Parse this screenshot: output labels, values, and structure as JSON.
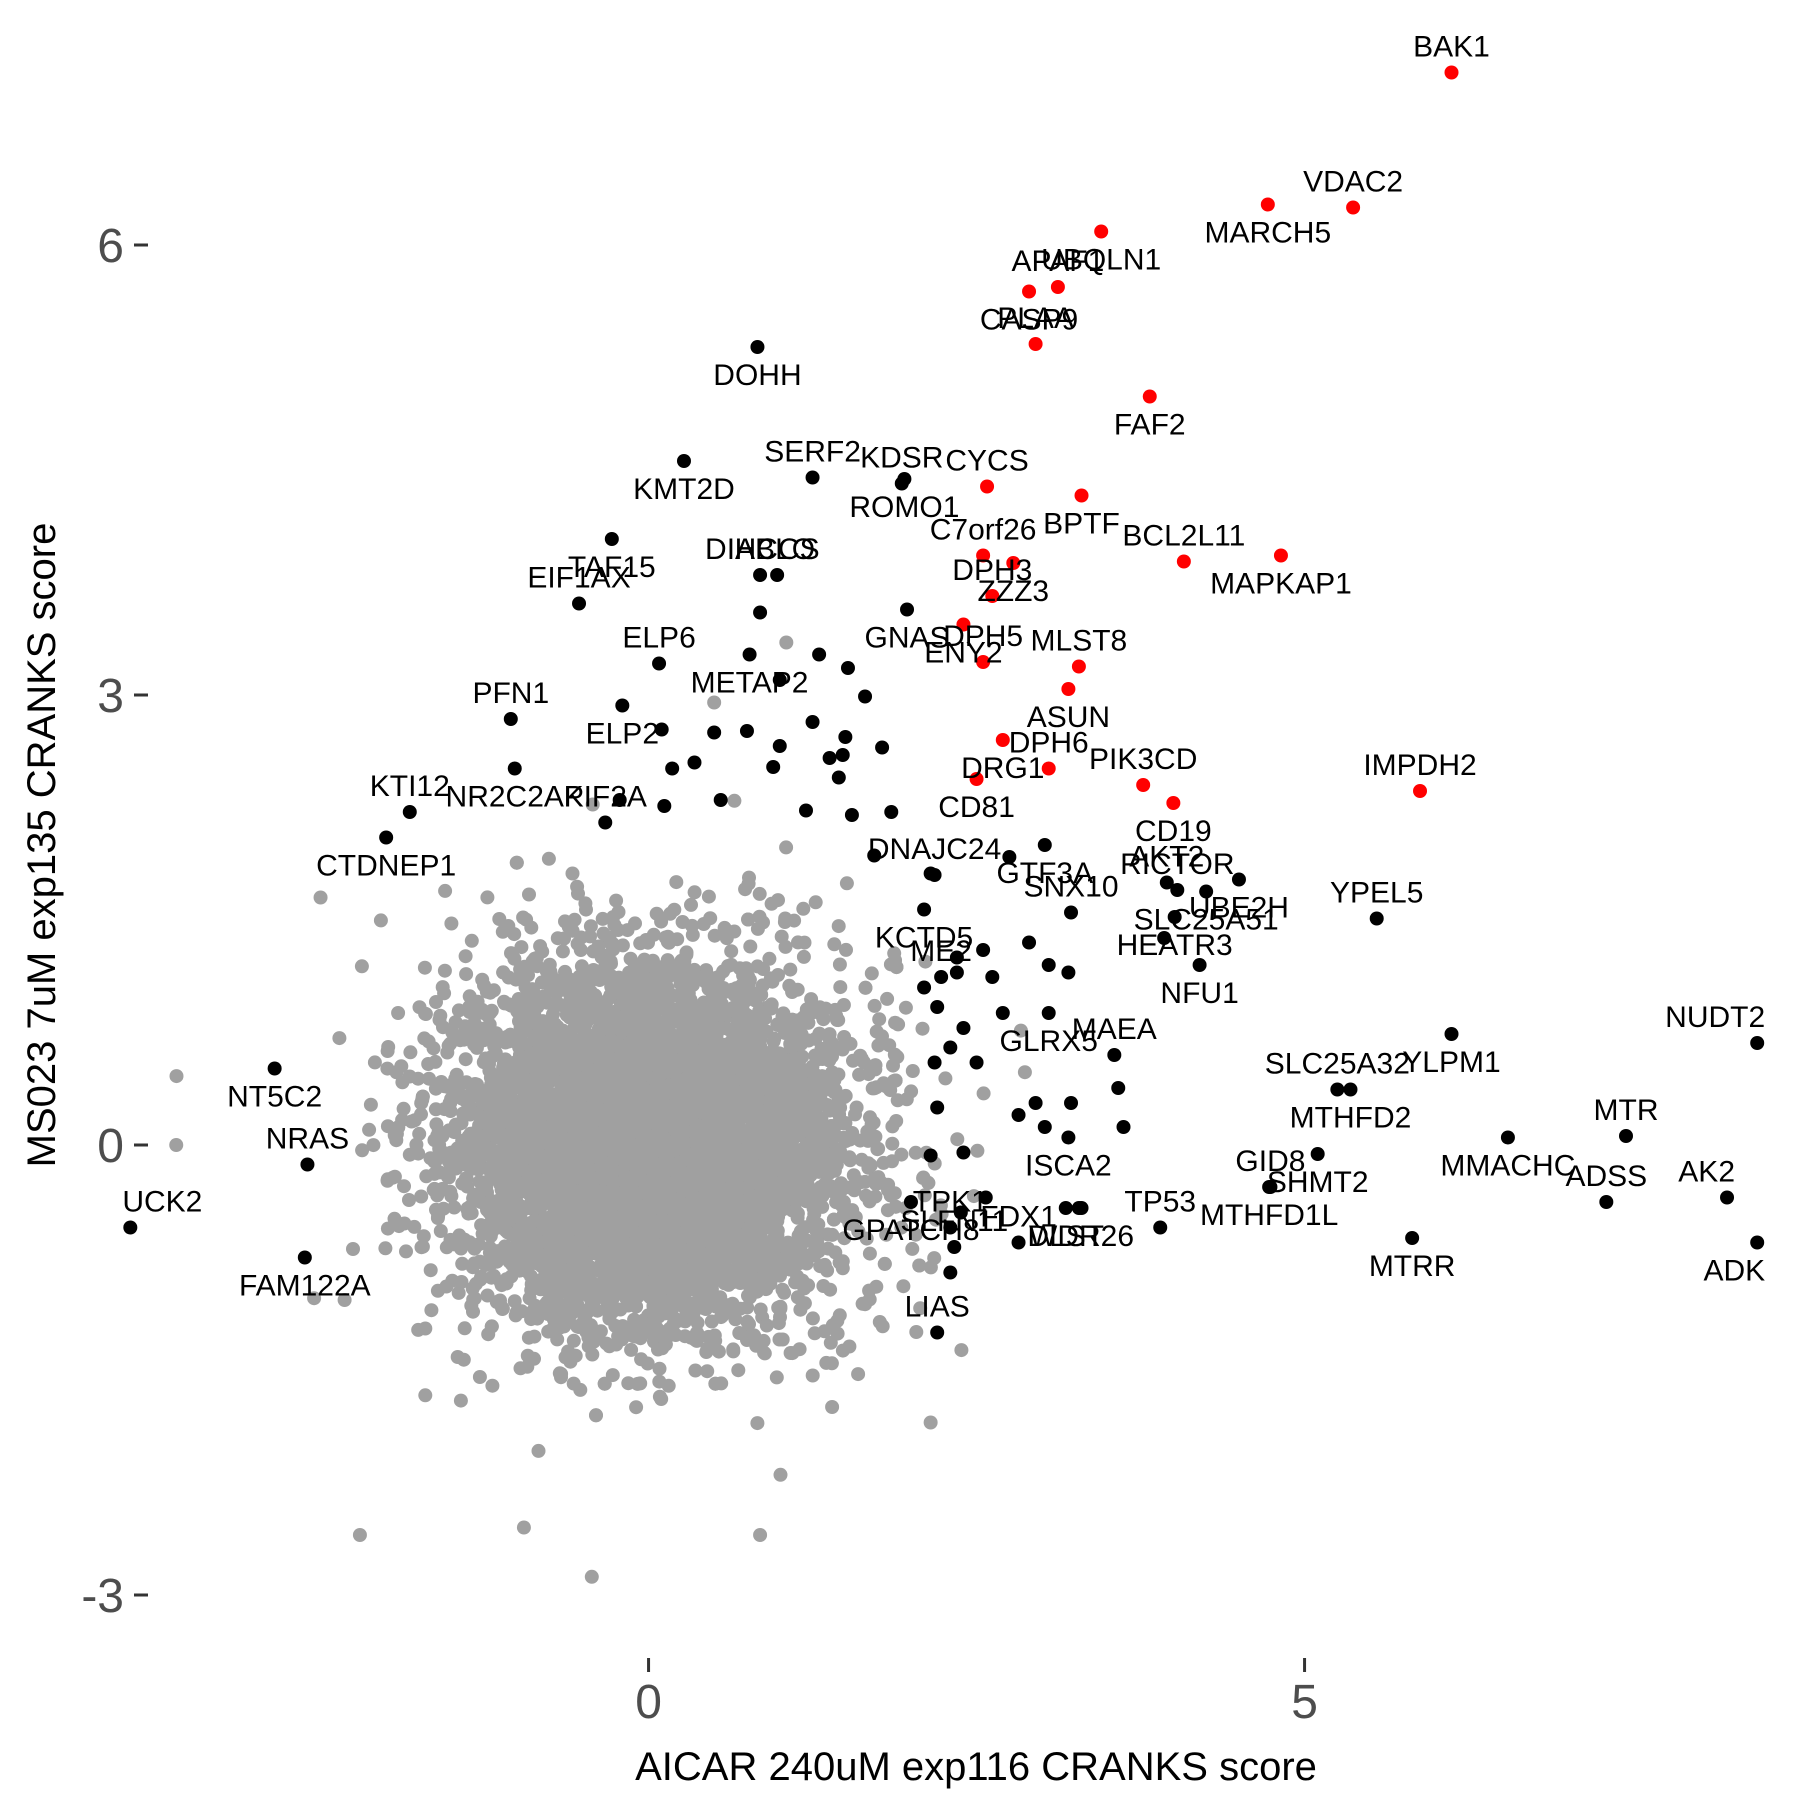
{
  "chart_data": {
    "type": "scatter",
    "title": "",
    "xlabel": "AICAR 240uM exp116 CRANKS score",
    "ylabel": "MS023 7uM exp135 CRANKS score",
    "xlim": [
      -3.8,
      8.7
    ],
    "ylim": [
      -3.4,
      7.5
    ],
    "xticks": [
      0,
      5
    ],
    "yticks": [
      -3,
      0,
      3,
      6
    ],
    "xtick_labels": [
      "0",
      "5"
    ],
    "ytick_labels": [
      "-3",
      "0",
      "3",
      "6"
    ],
    "grid": false,
    "legend": "none",
    "colors": {
      "background": "#cccccc",
      "highlight": "#000000",
      "top": "#ff0000",
      "tick_text": "#4d4d4d"
    },
    "background_points": {
      "description": "thousands of unlabeled grey points forming a dense cloud centered near (0, 0)",
      "approx_count": 6000,
      "center": [
        0,
        0
      ],
      "spread": [
        0.75,
        0.6
      ],
      "outliers": [
        [
          -3.6,
          0.0
        ],
        [
          -2.5,
          1.65
        ],
        [
          -2.2,
          -2.6
        ],
        [
          0.85,
          -2.6
        ],
        [
          -0.95,
          -2.55
        ],
        [
          2.15,
          -1.85
        ],
        [
          1.05,
          3.35
        ],
        [
          0.5,
          2.95
        ]
      ]
    },
    "labeled_points": [
      {
        "label": "BAK1",
        "x": 6.12,
        "y": 7.15,
        "group": "red"
      },
      {
        "label": "MARCH5",
        "x": 4.72,
        "y": 6.27,
        "group": "red"
      },
      {
        "label": "VDAC2",
        "x": 5.37,
        "y": 6.25,
        "group": "red"
      },
      {
        "label": "UBQLN1",
        "x": 3.45,
        "y": 6.09,
        "group": "red"
      },
      {
        "label": "APAF1",
        "x": 3.12,
        "y": 5.72,
        "group": "red"
      },
      {
        "label": "CASP9",
        "x": 2.9,
        "y": 5.69,
        "group": "red"
      },
      {
        "label": "PLAA",
        "x": 2.95,
        "y": 5.34,
        "group": "red"
      },
      {
        "label": "FAF2",
        "x": 3.82,
        "y": 4.99,
        "group": "red"
      },
      {
        "label": "CYCS",
        "x": 2.58,
        "y": 4.39,
        "group": "red"
      },
      {
        "label": "BPTF",
        "x": 3.3,
        "y": 4.33,
        "group": "red"
      },
      {
        "label": "C7orf26",
        "x": 2.55,
        "y": 3.93,
        "group": "red"
      },
      {
        "label": "ZZZ3",
        "x": 2.78,
        "y": 3.88,
        "group": "red"
      },
      {
        "label": "DPH3",
        "x": 2.62,
        "y": 3.66,
        "group": "red"
      },
      {
        "label": "MAPKAP1",
        "x": 4.82,
        "y": 3.93,
        "group": "red"
      },
      {
        "label": "BCL2L11",
        "x": 4.08,
        "y": 3.89,
        "group": "red"
      },
      {
        "label": "ENY2",
        "x": 2.4,
        "y": 3.47,
        "group": "red"
      },
      {
        "label": "MLST8",
        "x": 3.28,
        "y": 3.19,
        "group": "red"
      },
      {
        "label": "ASUN",
        "x": 3.2,
        "y": 3.04,
        "group": "red"
      },
      {
        "label": "DPH5",
        "x": 2.55,
        "y": 3.22,
        "group": "red"
      },
      {
        "label": "DRG1",
        "x": 2.7,
        "y": 2.7,
        "group": "red"
      },
      {
        "label": "DPH6",
        "x": 3.05,
        "y": 2.51,
        "group": "red"
      },
      {
        "label": "CD81",
        "x": 2.5,
        "y": 2.44,
        "group": "red"
      },
      {
        "label": "PIK3CD",
        "x": 3.77,
        "y": 2.4,
        "group": "red"
      },
      {
        "label": "CD19",
        "x": 4.0,
        "y": 2.28,
        "group": "red"
      },
      {
        "label": "IMPDH2",
        "x": 5.88,
        "y": 2.36,
        "group": "red"
      },
      {
        "label": "DOHH",
        "x": 0.83,
        "y": 5.32,
        "group": "black"
      },
      {
        "label": "SERF2",
        "x": 1.25,
        "y": 4.45,
        "group": "black"
      },
      {
        "label": "ROMO1",
        "x": 1.95,
        "y": 4.44,
        "group": "black"
      },
      {
        "label": "KDSR",
        "x": 1.93,
        "y": 4.41,
        "group": "black"
      },
      {
        "label": "KMT2D",
        "x": 0.27,
        "y": 4.56,
        "group": "black"
      },
      {
        "label": "DIABLO",
        "x": 0.85,
        "y": 3.8,
        "group": "black"
      },
      {
        "label": "GNAS",
        "x": 1.97,
        "y": 3.57,
        "group": "black"
      },
      {
        "label": "HCCS",
        "x": 0.98,
        "y": 3.8,
        "group": "black"
      },
      {
        "label": "TAF15",
        "x": -0.28,
        "y": 4.04,
        "group": "black"
      },
      {
        "label": "EIF1AX",
        "x": -0.53,
        "y": 3.61,
        "group": "black"
      },
      {
        "label": "METAP2",
        "x": 0.77,
        "y": 3.27,
        "group": "black"
      },
      {
        "label": "ELP6",
        "x": 0.08,
        "y": 3.21,
        "group": "black"
      },
      {
        "label": "ELP2",
        "x": -0.2,
        "y": 2.93,
        "group": "black"
      },
      {
        "label": "PFN1",
        "x": -1.05,
        "y": 2.84,
        "group": "black"
      },
      {
        "label": "NR2C2AP",
        "x": -1.02,
        "y": 2.51,
        "group": "black"
      },
      {
        "label": "KTI12",
        "x": -1.82,
        "y": 2.22,
        "group": "black"
      },
      {
        "label": "CTDNEP1",
        "x": -2.0,
        "y": 2.05,
        "group": "black"
      },
      {
        "label": "KIF2A",
        "x": -0.33,
        "y": 2.15,
        "group": "black"
      },
      {
        "label": "GTF3A",
        "x": 3.02,
        "y": 2.0,
        "group": "black"
      },
      {
        "label": "RICTOR",
        "x": 4.03,
        "y": 1.7,
        "group": "black"
      },
      {
        "label": "UBE2H",
        "x": 4.5,
        "y": 1.77,
        "group": "black"
      },
      {
        "label": "DNAJC24",
        "x": 2.18,
        "y": 1.8,
        "group": "black"
      },
      {
        "label": "KCTD5",
        "x": 2.1,
        "y": 1.57,
        "group": "black"
      },
      {
        "label": "AKT2",
        "x": 3.95,
        "y": 1.75,
        "group": "black"
      },
      {
        "label": "SLC25A51",
        "x": 4.25,
        "y": 1.69,
        "group": "black"
      },
      {
        "label": "YPEL5",
        "x": 5.55,
        "y": 1.51,
        "group": "black"
      },
      {
        "label": "HEATR3",
        "x": 4.01,
        "y": 1.52,
        "group": "black"
      },
      {
        "label": "SNX10",
        "x": 3.22,
        "y": 1.55,
        "group": "black"
      },
      {
        "label": "NFU1",
        "x": 4.2,
        "y": 1.2,
        "group": "black"
      },
      {
        "label": "ME2",
        "x": 2.23,
        "y": 1.12,
        "group": "black"
      },
      {
        "label": "GLRX5",
        "x": 3.05,
        "y": 0.88,
        "group": "black"
      },
      {
        "label": "SLC25A32",
        "x": 5.25,
        "y": 0.37,
        "group": "black"
      },
      {
        "label": "YLPM1",
        "x": 6.12,
        "y": 0.74,
        "group": "black"
      },
      {
        "label": "NUDT2",
        "x": 8.45,
        "y": 0.68,
        "group": "black"
      },
      {
        "label": "MTHFD2",
        "x": 5.35,
        "y": 0.37,
        "group": "black"
      },
      {
        "label": "MAEA",
        "x": 3.55,
        "y": 0.6,
        "group": "black"
      },
      {
        "label": "SHMT2",
        "x": 5.1,
        "y": -0.06,
        "group": "black"
      },
      {
        "label": "MTR",
        "x": 7.45,
        "y": 0.06,
        "group": "black"
      },
      {
        "label": "MMACHC",
        "x": 6.55,
        "y": 0.05,
        "group": "black"
      },
      {
        "label": "AK2",
        "x": 8.22,
        "y": -0.35,
        "group": "black"
      },
      {
        "label": "ISCA2",
        "x": 3.2,
        "y": 0.05,
        "group": "black"
      },
      {
        "label": "GID8",
        "x": 4.74,
        "y": -0.28,
        "group": "black"
      },
      {
        "label": "MTHFD1L",
        "x": 4.73,
        "y": -0.28,
        "group": "black"
      },
      {
        "label": "ADSS",
        "x": 7.3,
        "y": -0.38,
        "group": "black"
      },
      {
        "label": "ADK",
        "x": 8.45,
        "y": -0.65,
        "group": "black"
      },
      {
        "label": "TP53",
        "x": 3.9,
        "y": -0.55,
        "group": "black"
      },
      {
        "label": "MTRR",
        "x": 5.82,
        "y": -0.62,
        "group": "black"
      },
      {
        "label": "FDX1",
        "x": 2.82,
        "y": -0.65,
        "group": "black"
      },
      {
        "label": "WDR26",
        "x": 3.3,
        "y": -0.42,
        "group": "black"
      },
      {
        "label": "SLFN11",
        "x": 2.33,
        "y": -0.68,
        "group": "black"
      },
      {
        "label": "DLST",
        "x": 3.18,
        "y": -0.42,
        "group": "black"
      },
      {
        "label": "LIAS",
        "x": 2.2,
        "y": -1.25,
        "group": "black"
      },
      {
        "label": "GPATCH8",
        "x": 2.0,
        "y": -0.38,
        "group": "black"
      },
      {
        "label": "TPK1",
        "x": 2.3,
        "y": -0.55,
        "group": "black"
      },
      {
        "label": "NT5C2",
        "x": -2.85,
        "y": 0.51,
        "group": "black"
      },
      {
        "label": "NRAS",
        "x": -2.6,
        "y": -0.13,
        "group": "black"
      },
      {
        "label": "FAM122A",
        "x": -2.62,
        "y": -0.75,
        "group": "black"
      },
      {
        "label": "UCK2",
        "x": -3.95,
        "y": -0.55,
        "group": "black"
      }
    ],
    "extra_black_points": [
      [
        0.75,
        2.76
      ],
      [
        0.95,
        2.52
      ],
      [
        1.25,
        2.82
      ],
      [
        1.5,
        2.72
      ],
      [
        1.45,
        2.45
      ],
      [
        0.35,
        2.55
      ],
      [
        0.55,
        2.3
      ],
      [
        1.2,
        2.23
      ],
      [
        1.78,
        2.65
      ],
      [
        1.55,
        2.2
      ],
      [
        1.85,
        2.22
      ],
      [
        1.38,
        2.58
      ],
      [
        1.65,
        2.99
      ],
      [
        1.0,
        3.1
      ],
      [
        0.1,
        2.77
      ],
      [
        0.18,
        2.51
      ],
      [
        -0.22,
        2.3
      ],
      [
        0.12,
        2.26
      ],
      [
        1.72,
        1.93
      ],
      [
        2.15,
        1.81
      ],
      [
        2.35,
        1.25
      ],
      [
        2.1,
        1.05
      ],
      [
        2.35,
        1.15
      ],
      [
        2.62,
        1.12
      ],
      [
        2.7,
        0.88
      ],
      [
        2.2,
        0.92
      ],
      [
        2.4,
        0.78
      ],
      [
        2.3,
        0.65
      ],
      [
        2.18,
        0.55
      ],
      [
        2.55,
        1.3
      ],
      [
        3.05,
        1.2
      ],
      [
        3.2,
        1.15
      ],
      [
        2.5,
        0.55
      ],
      [
        2.4,
        -0.05
      ],
      [
        2.2,
        0.25
      ],
      [
        2.15,
        -0.07
      ],
      [
        2.38,
        -0.45
      ],
      [
        2.57,
        -0.35
      ],
      [
        2.3,
        -0.85
      ],
      [
        2.95,
        0.28
      ],
      [
        3.22,
        0.28
      ],
      [
        3.02,
        0.12
      ],
      [
        3.28,
        -0.42
      ],
      [
        2.82,
        0.2
      ],
      [
        3.62,
        0.12
      ],
      [
        3.58,
        0.38
      ],
      [
        3.93,
        1.38
      ],
      [
        2.9,
        1.35
      ],
      [
        2.75,
        1.92
      ],
      [
        1.52,
        3.18
      ],
      [
        0.85,
        3.55
      ],
      [
        1.3,
        3.27
      ],
      [
        1.0,
        2.66
      ],
      [
        1.48,
        2.6
      ],
      [
        0.5,
        2.75
      ]
    ]
  }
}
